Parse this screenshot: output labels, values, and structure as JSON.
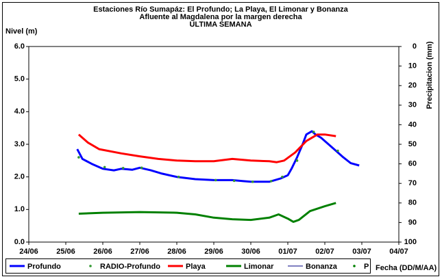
{
  "chart_data": {
    "type": "line",
    "title": [
      "Estaciones Río Sumapáz: El Profundo; La Playa, El Limonar y Bonanza",
      "Afluente al Magdalena por la margen derecha",
      "ULTIMA SEMANA"
    ],
    "y_label": "Nivel (m)",
    "y2_label": "Precipitacion (mm)",
    "x_label": "Fecha (DD/M/AA)",
    "xlim": [
      0,
      10
    ],
    "xticks": [
      {
        "value": 0,
        "label": "24/06"
      },
      {
        "value": 1,
        "label": "25/06"
      },
      {
        "value": 2,
        "label": "26/06"
      },
      {
        "value": 3,
        "label": "27/06"
      },
      {
        "value": 4,
        "label": "28/06"
      },
      {
        "value": 5,
        "label": "29/06"
      },
      {
        "value": 6,
        "label": "30/06"
      },
      {
        "value": 7,
        "label": "01/07"
      },
      {
        "value": 8,
        "label": "02/07"
      },
      {
        "value": 9,
        "label": "03/07"
      },
      {
        "value": 10,
        "label": "04/07"
      }
    ],
    "ylim": [
      0,
      6
    ],
    "yticks": [
      {
        "value": 0,
        "label": "0.0"
      },
      {
        "value": 1,
        "label": "1.0"
      },
      {
        "value": 2,
        "label": "2.0"
      },
      {
        "value": 3,
        "label": "3.0"
      },
      {
        "value": 4,
        "label": "4.0"
      },
      {
        "value": 5,
        "label": "5.0"
      },
      {
        "value": 6,
        "label": "6.0"
      }
    ],
    "y2lim": [
      100,
      0
    ],
    "y2ticks": [
      0,
      10,
      20,
      30,
      40,
      50,
      60,
      70,
      80,
      90,
      100
    ],
    "series": [
      {
        "name": "Profundo",
        "color": "#0000ff",
        "style": "line",
        "width": 3,
        "x": [
          1.31,
          1.45,
          1.7,
          2.0,
          2.3,
          2.5,
          2.8,
          3.0,
          3.3,
          3.6,
          4.0,
          4.5,
          5.0,
          5.5,
          5.8,
          6.0,
          6.5,
          6.8,
          7.0,
          7.1,
          7.25,
          7.4,
          7.5,
          7.65,
          7.75,
          7.9,
          8.1,
          8.3,
          8.5,
          8.7,
          8.93
        ],
        "values": [
          2.85,
          2.55,
          2.4,
          2.25,
          2.2,
          2.25,
          2.22,
          2.28,
          2.2,
          2.1,
          2.0,
          1.93,
          1.9,
          1.9,
          1.87,
          1.85,
          1.85,
          1.95,
          2.05,
          2.25,
          2.6,
          3.0,
          3.3,
          3.4,
          3.3,
          3.2,
          3.0,
          2.8,
          2.6,
          2.42,
          2.35
        ]
      },
      {
        "name": "RADIO-Profundo",
        "color": "#339933",
        "style": "dots",
        "x": [
          1.35,
          2.05,
          2.55,
          3.05,
          4.05,
          5.05,
          5.55,
          6.05,
          6.55,
          6.85,
          7.25,
          7.7,
          8.35
        ],
        "values": [
          2.6,
          2.3,
          2.27,
          2.28,
          2.0,
          1.9,
          1.88,
          1.85,
          1.87,
          2.0,
          2.5,
          3.38,
          2.8
        ]
      },
      {
        "name": "Playa",
        "color": "#ff0000",
        "style": "line",
        "width": 3,
        "x": [
          1.35,
          1.6,
          1.9,
          2.5,
          3.0,
          3.5,
          4.0,
          4.5,
          5.0,
          5.5,
          6.0,
          6.5,
          6.7,
          6.9,
          7.2,
          7.5,
          7.8,
          8.0,
          8.3
        ],
        "values": [
          3.3,
          3.05,
          2.85,
          2.72,
          2.63,
          2.55,
          2.5,
          2.48,
          2.48,
          2.55,
          2.5,
          2.48,
          2.45,
          2.5,
          2.75,
          3.1,
          3.3,
          3.3,
          3.25
        ]
      },
      {
        "name": "Limonar",
        "color": "#008000",
        "style": "line",
        "width": 3,
        "x": [
          1.35,
          2.0,
          3.0,
          4.0,
          4.5,
          5.0,
          5.5,
          6.0,
          6.5,
          6.75,
          7.0,
          7.15,
          7.3,
          7.6,
          8.0,
          8.3
        ],
        "values": [
          0.87,
          0.9,
          0.92,
          0.9,
          0.85,
          0.75,
          0.7,
          0.68,
          0.75,
          0.85,
          0.72,
          0.62,
          0.68,
          0.95,
          1.1,
          1.2
        ]
      },
      {
        "name": "Bonanza",
        "color": "#000080",
        "style": "line",
        "width": 1,
        "x": [],
        "values": []
      },
      {
        "name": "P",
        "color": "#008000",
        "style": "dots",
        "axis": "y2",
        "x": [],
        "values": []
      }
    ]
  }
}
